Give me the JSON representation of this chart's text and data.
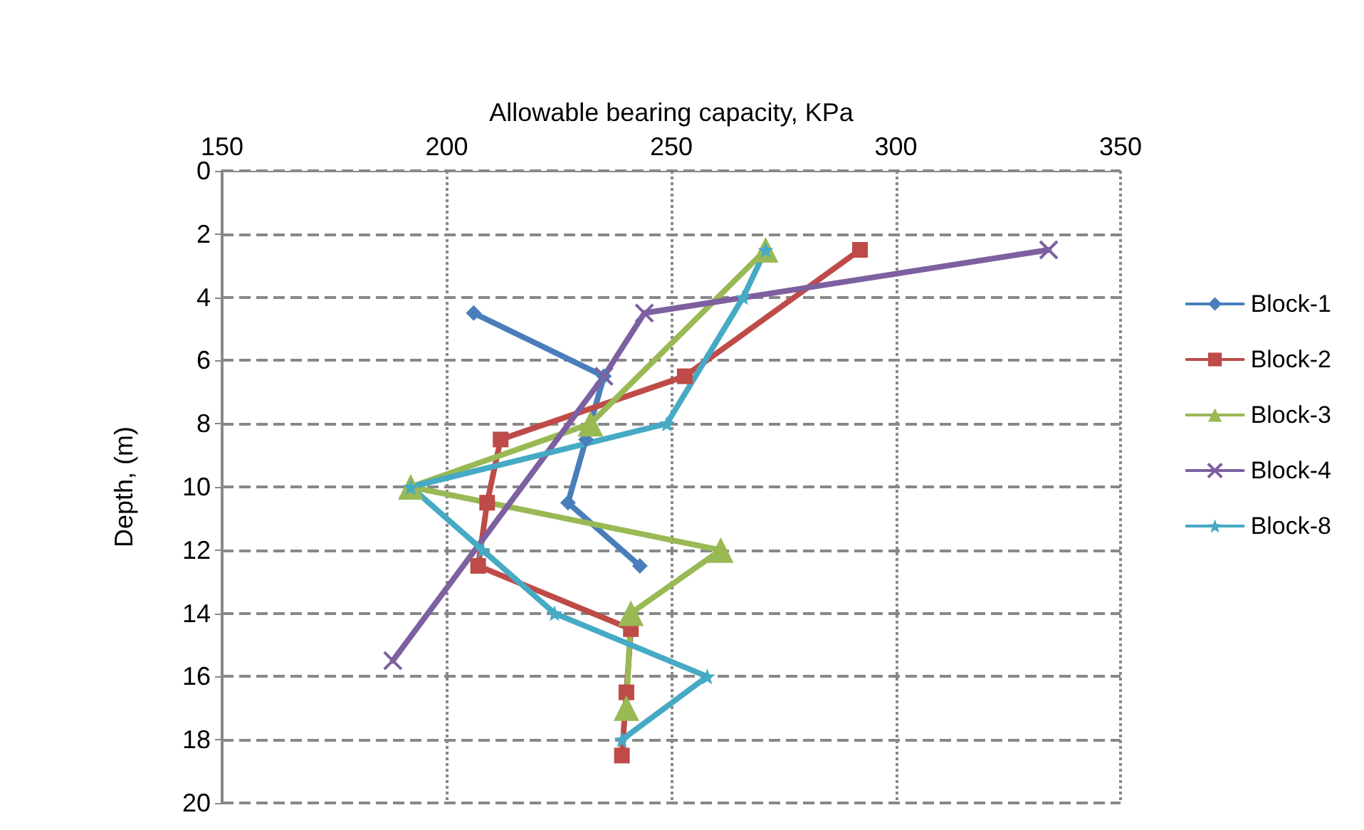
{
  "chart_data": {
    "type": "line",
    "xlabel": "Allowable bearing capacity, KPa",
    "ylabel": "Depth, (m)",
    "xlim": [
      150,
      350
    ],
    "xticks": [
      150,
      200,
      250,
      300,
      350
    ],
    "ylim": [
      20,
      0
    ],
    "yticks": [
      0,
      2,
      4,
      6,
      8,
      10,
      12,
      14,
      16,
      18,
      20
    ],
    "grid": true,
    "legend": "right",
    "series": [
      {
        "name": "Block-1",
        "color": "#4a7ebb",
        "marker": "diamond",
        "x": [
          206,
          235,
          231,
          227,
          243
        ],
        "values": [
          4.5,
          6.5,
          8.5,
          10.5,
          12.5
        ]
      },
      {
        "name": "Block-2",
        "color": "#be4b48",
        "marker": "square",
        "x": [
          292,
          253,
          212,
          209,
          207,
          241,
          240,
          239
        ],
        "values": [
          2.5,
          6.5,
          8.5,
          10.5,
          12.5,
          14.5,
          16.5,
          18.5
        ]
      },
      {
        "name": "Block-3",
        "color": "#98b954",
        "marker": "triangle",
        "x": [
          271,
          232,
          192,
          261,
          241,
          240
        ],
        "values": [
          2.5,
          8,
          10,
          12,
          14,
          17
        ]
      },
      {
        "name": "Block-4",
        "color": "#7d60a0",
        "marker": "cross",
        "x": [
          334,
          244,
          235,
          188
        ],
        "values": [
          2.5,
          4.5,
          6.5,
          15.5
        ]
      },
      {
        "name": "Block-8",
        "color": "#46aac5",
        "marker": "star",
        "x": [
          271,
          266,
          249,
          192,
          208,
          224,
          258,
          239
        ],
        "values": [
          2.5,
          4,
          8,
          10,
          12,
          14,
          16,
          18
        ]
      }
    ]
  }
}
